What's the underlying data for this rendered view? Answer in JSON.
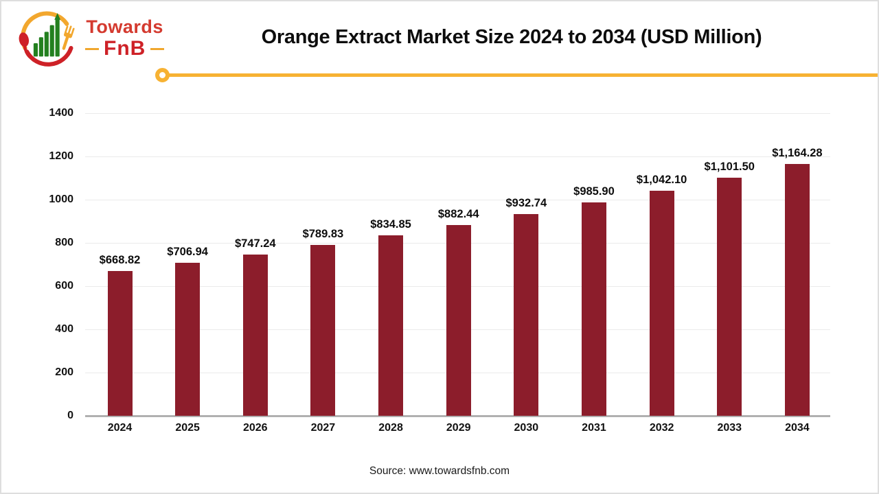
{
  "header": {
    "logo": {
      "brand_line1": "Towards",
      "brand_line2": "FnB"
    },
    "title": "Orange Extract Market Size 2024 to 2034 (USD Million)"
  },
  "chart_data": {
    "type": "bar",
    "title": "Orange Extract Market Size 2024 to 2034 (USD Million)",
    "categories": [
      "2024",
      "2025",
      "2026",
      "2027",
      "2028",
      "2029",
      "2030",
      "2031",
      "2032",
      "2033",
      "2034"
    ],
    "values": [
      668.82,
      706.94,
      747.24,
      789.83,
      834.85,
      882.44,
      932.74,
      985.9,
      1042.1,
      1101.5,
      1164.28
    ],
    "bar_labels": [
      "$668.82",
      "$706.94",
      "$747.24",
      "$789.83",
      "$834.85",
      "$882.44",
      "$932.74",
      "$985.90",
      "$1,042.10",
      "$1,101.50",
      "$1,164.28"
    ],
    "xlabel": "",
    "ylabel": "",
    "ylim": [
      0,
      1400
    ],
    "yticks": [
      0,
      200,
      400,
      600,
      800,
      1000,
      1200,
      1400
    ],
    "grid": true,
    "legend": false,
    "bar_color": "#8C1D2B"
  },
  "footer": {
    "source": "Source: www.towardsfnb.com"
  },
  "theme": {
    "accent_yellow": "#f7b233",
    "bar_color": "#8C1D2B",
    "logo_red": "#ce2127",
    "logo_green": "#23801f",
    "gridline_color": "#eaeaea",
    "axis_line_color": "#b0b0b0"
  }
}
